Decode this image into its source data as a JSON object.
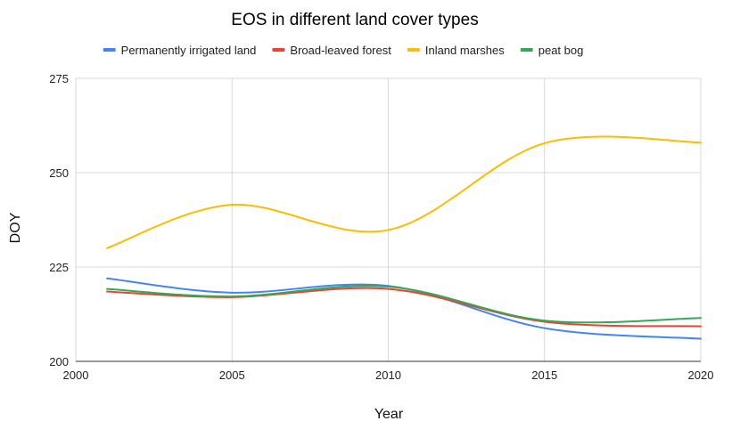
{
  "chart_data": {
    "type": "line",
    "title": "EOS in different land cover types",
    "xlabel": "Year",
    "ylabel": "DOY",
    "x": [
      2001,
      2005,
      2010,
      2015,
      2020
    ],
    "xlim": [
      2000,
      2020
    ],
    "ylim": [
      200,
      275
    ],
    "xticks": [
      2000,
      2005,
      2010,
      2015,
      2020
    ],
    "yticks": [
      200,
      225,
      250,
      275
    ],
    "grid": true,
    "legend_position": "top",
    "series": [
      {
        "name": "Permanently irrigated land",
        "color": "#4285F4",
        "values": [
          222,
          218.2,
          220,
          208.8,
          206
        ]
      },
      {
        "name": "Broad-leaved forest",
        "color": "#EA4335",
        "values": [
          218.5,
          217,
          219.2,
          210.5,
          209.3
        ]
      },
      {
        "name": "Inland marshes",
        "color": "#FBBC04",
        "values": [
          230,
          241.5,
          234.8,
          257.8,
          258
        ]
      },
      {
        "name": "peat bog",
        "color": "#34A853",
        "values": [
          219.2,
          217.2,
          219.8,
          210.8,
          211.5
        ]
      }
    ]
  }
}
